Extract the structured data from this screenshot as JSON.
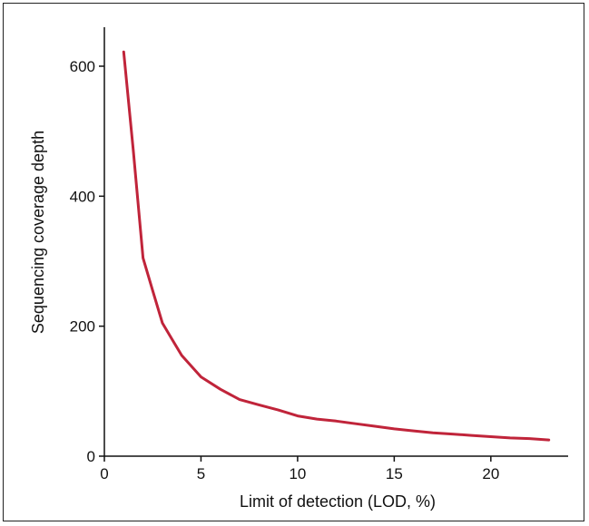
{
  "chart_data": {
    "type": "line",
    "title": "",
    "xlabel": "Limit of detection (LOD, %)",
    "ylabel": "Sequencing coverage depth",
    "xlim": [
      0,
      24
    ],
    "ylim": [
      0,
      660
    ],
    "x_ticks": [
      0,
      5,
      10,
      15,
      20
    ],
    "y_ticks": [
      0,
      200,
      400,
      600
    ],
    "grid": false,
    "series": [
      {
        "color": "#c0243a",
        "x": [
          1.0,
          1.5,
          2.0,
          2.5,
          3.0,
          3.5,
          4.0,
          5.0,
          6.0,
          7.0,
          8.0,
          9.0,
          10.0,
          11.0,
          12.0,
          13.0,
          14.0,
          15.0,
          16.0,
          17.0,
          18.0,
          19.0,
          20.0,
          21.0,
          22.0,
          23.0
        ],
        "y": [
          622,
          470,
          305,
          255,
          205,
          180,
          155,
          122,
          103,
          87,
          79,
          71,
          62,
          57,
          54,
          50,
          46,
          42,
          39,
          36,
          34,
          32,
          30,
          28,
          27,
          25
        ]
      }
    ]
  }
}
